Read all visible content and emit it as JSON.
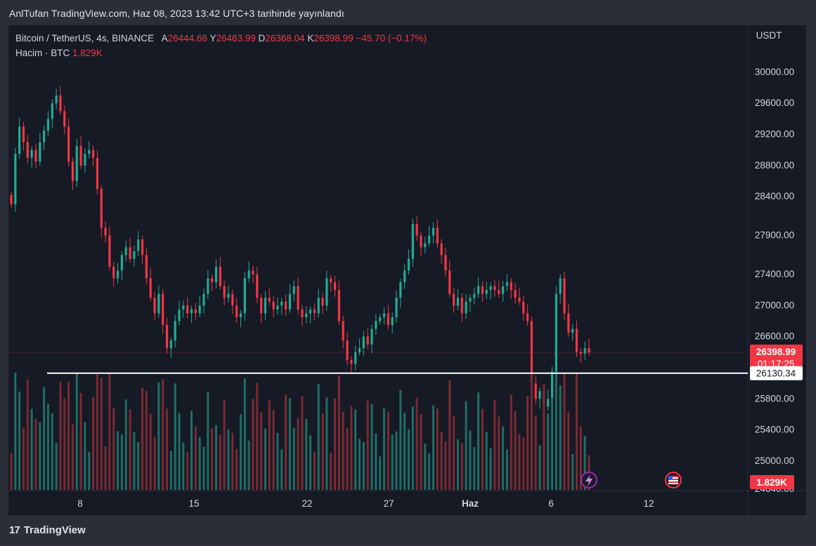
{
  "header": {
    "published_text": "AnlTufan TradingView.com, Haz 08, 2023 13:42 UTC+3 tarihinde yayınlandı"
  },
  "legend": {
    "symbol": "Bitcoin / TetherUS, 4s, BINANCE",
    "open_label": "A",
    "open": "26444.68",
    "high_label": "Y",
    "high": "26463.99",
    "low_label": "D",
    "low": "26368.04",
    "close_label": "K",
    "close": "26398.99",
    "change": "−45.70 (−0.17%)",
    "volume_label": "Hacim · BTC",
    "volume": "1.829K"
  },
  "price_axis": {
    "currency": "USDT",
    "ticks": [
      "30000.00",
      "29600.00",
      "29200.00",
      "28800.00",
      "28400.00",
      "27900.00",
      "27400.00",
      "27000.00",
      "26600.00",
      "25800.00",
      "25400.00",
      "25000.00",
      "24640.00"
    ],
    "last_price_label": "26398.99",
    "countdown": "01:17:25",
    "line_label": "26130.34",
    "volume_label": "1.829K"
  },
  "time_axis": {
    "ticks": [
      "8",
      "15",
      "22",
      "27",
      "Haz",
      "6",
      "12"
    ]
  },
  "footer": {
    "brand_mark": "17",
    "brand": "TradingView"
  },
  "colors": {
    "background": "#161a25",
    "up": "#22ab94",
    "down": "#f23645",
    "volume_up": "#1f6e66",
    "volume_down": "#7a2a33",
    "horizontal_line": "#ffffff",
    "last_price": "#f23645"
  },
  "icons": {
    "lightning_event": "lightning-icon",
    "flag_event": "us-flag-icon"
  },
  "chart_data": {
    "type": "candlestick",
    "symbol": "Bitcoin / TetherUS",
    "interval": "4s",
    "exchange": "BINANCE",
    "ylim": [
      24480,
      30480
    ],
    "grid": false,
    "horizontal_line": 26130.34,
    "last_price": 26398.99,
    "closes": [
      28300,
      28950,
      29300,
      29100,
      28900,
      29000,
      28850,
      29100,
      29250,
      29400,
      29600,
      29700,
      29500,
      29300,
      28850,
      28600,
      29050,
      28800,
      28950,
      29000,
      28900,
      28500,
      28000,
      27900,
      27500,
      27350,
      27450,
      27650,
      27750,
      27600,
      27700,
      27850,
      27650,
      27350,
      27100,
      26900,
      27150,
      26750,
      26450,
      26550,
      26800,
      26950,
      27000,
      26900,
      26950,
      26900,
      27000,
      27150,
      27350,
      27300,
      27500,
      27250,
      27100,
      27150,
      27000,
      26850,
      26900,
      27350,
      27450,
      27400,
      27100,
      26900,
      27100,
      27050,
      26950,
      27000,
      27050,
      26950,
      27150,
      27250,
      26950,
      26850,
      26900,
      26950,
      26900,
      27100,
      27000,
      27350,
      27300,
      27200,
      26800,
      26550,
      26300,
      26250,
      26400,
      26450,
      26600,
      26500,
      26700,
      26800,
      26850,
      26900,
      26750,
      26850,
      27100,
      27300,
      27450,
      27600,
      28050,
      27900,
      27750,
      27800,
      27900,
      28000,
      27800,
      27650,
      27450,
      27150,
      27000,
      27100,
      26900,
      27050,
      27100,
      27150,
      27250,
      27150,
      27200,
      27250,
      27200,
      27150,
      27250,
      27300,
      27200,
      27100,
      27050,
      26900,
      26800,
      26000,
      25800,
      25900,
      25700,
      25800,
      26150,
      27150,
      27350,
      26900,
      26650,
      26700,
      26400,
      26380,
      26450,
      26399
    ],
    "volume_range": [
      0,
      1.0
    ],
    "volume_max_label": "1.829K"
  }
}
